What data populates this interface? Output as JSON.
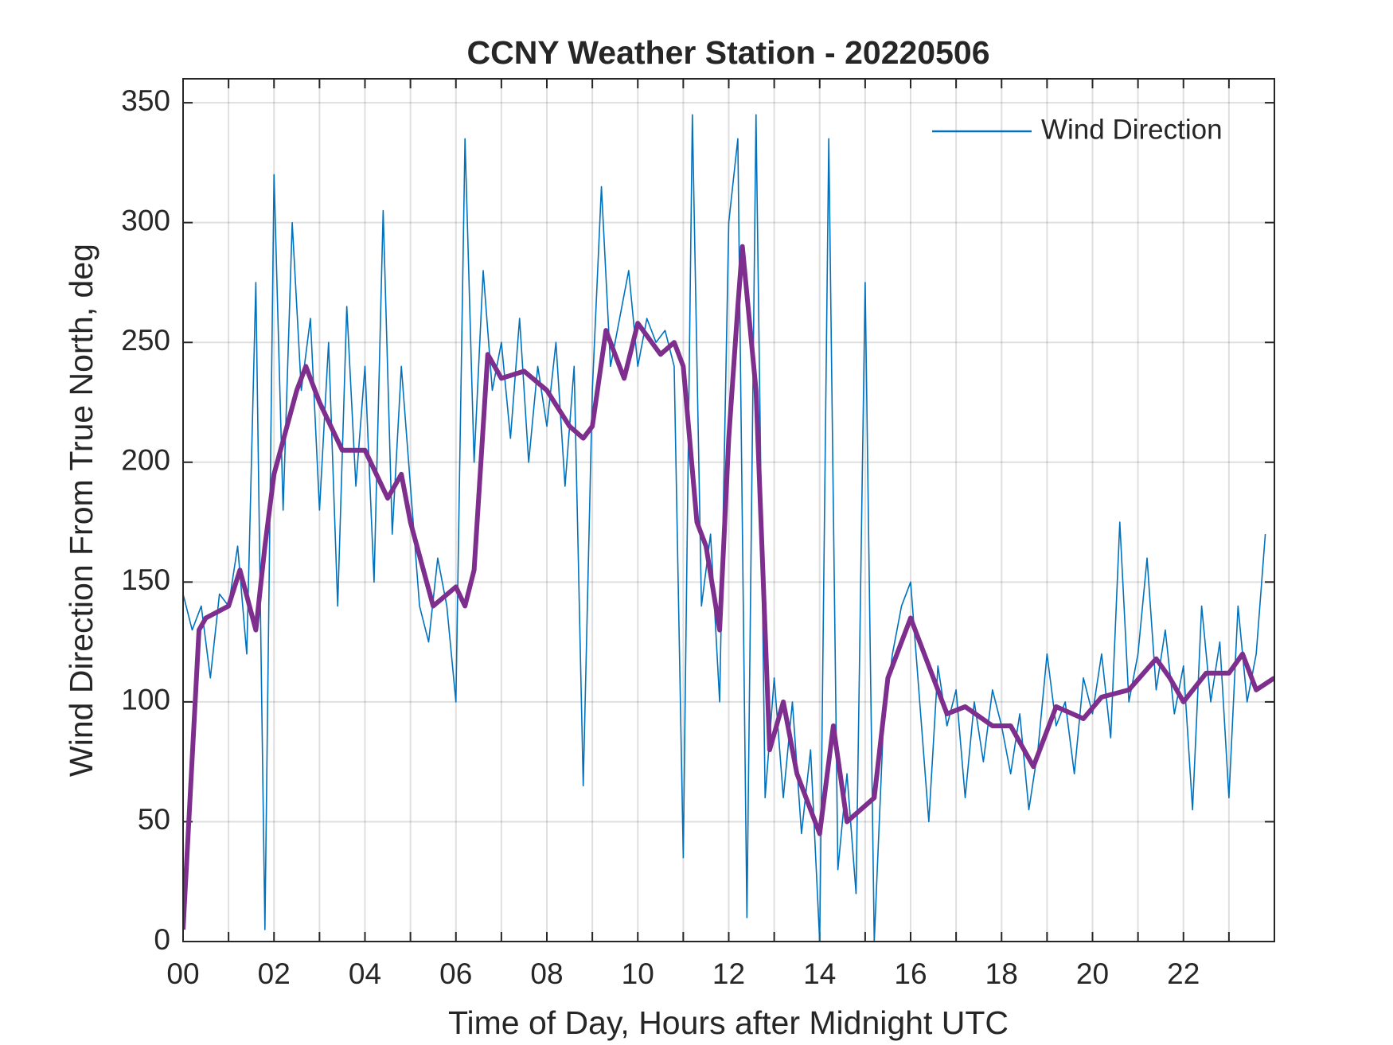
{
  "chart_data": {
    "type": "line",
    "title": "CCNY Weather Station - 20220506",
    "xlabel": "Time of Day, Hours after Midnight UTC",
    "ylabel": "Wind Direction From True North, deg",
    "xlim": [
      0,
      24
    ],
    "ylim": [
      0,
      360
    ],
    "xticks": [
      {
        "value": 0,
        "label": "00"
      },
      {
        "value": 2,
        "label": "02"
      },
      {
        "value": 4,
        "label": "04"
      },
      {
        "value": 6,
        "label": "06"
      },
      {
        "value": 8,
        "label": "08"
      },
      {
        "value": 10,
        "label": "10"
      },
      {
        "value": 12,
        "label": "12"
      },
      {
        "value": 14,
        "label": "14"
      },
      {
        "value": 16,
        "label": "16"
      },
      {
        "value": 18,
        "label": "18"
      },
      {
        "value": 20,
        "label": "20"
      },
      {
        "value": 22,
        "label": "22"
      }
    ],
    "xminorticks": [
      1,
      3,
      5,
      7,
      9,
      11,
      13,
      15,
      17,
      19,
      21,
      23
    ],
    "yticks": [
      0,
      50,
      100,
      150,
      200,
      250,
      300,
      350
    ],
    "grid": true,
    "legend": "upper right",
    "series": [
      {
        "name": "Wind Direction",
        "color": "#0072bd",
        "width": 1.6,
        "x": [
          0,
          0.2,
          0.4,
          0.6,
          0.8,
          1,
          1.2,
          1.4,
          1.6,
          1.8,
          2,
          2.2,
          2.4,
          2.6,
          2.8,
          3,
          3.2,
          3.4,
          3.6,
          3.8,
          4,
          4.2,
          4.4,
          4.6,
          4.8,
          5,
          5.2,
          5.4,
          5.6,
          5.8,
          6,
          6.2,
          6.4,
          6.6,
          6.8,
          7,
          7.2,
          7.4,
          7.6,
          7.8,
          8,
          8.2,
          8.4,
          8.6,
          8.8,
          9,
          9.2,
          9.4,
          9.6,
          9.8,
          10,
          10.2,
          10.4,
          10.6,
          10.8,
          11,
          11.2,
          11.4,
          11.6,
          11.8,
          12,
          12.2,
          12.4,
          12.6,
          12.8,
          13,
          13.2,
          13.4,
          13.6,
          13.8,
          14,
          14.2,
          14.4,
          14.6,
          14.8,
          15,
          15.2,
          15.4,
          15.6,
          15.8,
          16,
          16.2,
          16.4,
          16.6,
          16.8,
          17,
          17.2,
          17.4,
          17.6,
          17.8,
          18,
          18.2,
          18.4,
          18.6,
          18.8,
          19,
          19.2,
          19.4,
          19.6,
          19.8,
          20,
          20.2,
          20.4,
          20.6,
          20.8,
          21,
          21.2,
          21.4,
          21.6,
          21.8,
          22,
          22.2,
          22.4,
          22.6,
          22.8,
          23,
          23.2,
          23.4,
          23.6,
          23.8
        ],
        "values": [
          145,
          130,
          140,
          110,
          145,
          140,
          165,
          120,
          275,
          5,
          320,
          180,
          300,
          230,
          260,
          180,
          250,
          140,
          265,
          190,
          240,
          150,
          305,
          170,
          240,
          190,
          140,
          125,
          160,
          140,
          100,
          335,
          200,
          280,
          230,
          250,
          210,
          260,
          200,
          240,
          215,
          250,
          190,
          240,
          65,
          230,
          315,
          240,
          260,
          280,
          240,
          260,
          250,
          255,
          240,
          35,
          345,
          140,
          170,
          100,
          300,
          335,
          10,
          345,
          60,
          110,
          60,
          100,
          45,
          80,
          0,
          335,
          30,
          70,
          20,
          275,
          0,
          90,
          120,
          140,
          150,
          100,
          50,
          115,
          90,
          105,
          60,
          100,
          75,
          105,
          90,
          70,
          95,
          55,
          80,
          120,
          90,
          100,
          70,
          110,
          95,
          120,
          85,
          175,
          100,
          120,
          160,
          105,
          130,
          95,
          115,
          55,
          140,
          100,
          125,
          60,
          140,
          100,
          120,
          170
        ]
      },
      {
        "color": "#7e2f8e",
        "width": 6,
        "x": [
          0,
          0.35,
          0.5,
          1,
          1.25,
          1.6,
          1.8,
          2,
          2.5,
          2.7,
          3,
          3.5,
          4,
          4.5,
          4.8,
          5,
          5.5,
          6,
          6.2,
          6.4,
          6.7,
          7,
          7.5,
          8,
          8.5,
          8.8,
          9,
          9.3,
          9.7,
          10,
          10.5,
          10.8,
          11,
          11.3,
          11.5,
          11.8,
          12,
          12.2,
          12.3,
          12.6,
          12.9,
          13.2,
          13.5,
          13.8,
          14,
          14.3,
          14.6,
          14.9,
          15.2,
          15.5,
          16,
          16.5,
          16.8,
          17.2,
          17.8,
          18.2,
          18.7,
          19.2,
          19.8,
          20.2,
          20.8,
          21.4,
          21.7,
          22,
          22.5,
          23,
          23.3,
          23.6,
          24
        ],
        "values": [
          5,
          130,
          135,
          140,
          155,
          130,
          165,
          195,
          230,
          240,
          225,
          205,
          205,
          185,
          195,
          175,
          140,
          148,
          140,
          155,
          245,
          235,
          238,
          230,
          215,
          210,
          215,
          255,
          235,
          258,
          245,
          250,
          240,
          175,
          165,
          130,
          210,
          265,
          290,
          230,
          80,
          100,
          70,
          55,
          45,
          90,
          50,
          55,
          60,
          110,
          135,
          110,
          95,
          98,
          90,
          90,
          73,
          98,
          93,
          102,
          105,
          118,
          110,
          100,
          112,
          112,
          120,
          105,
          110
        ]
      }
    ]
  }
}
